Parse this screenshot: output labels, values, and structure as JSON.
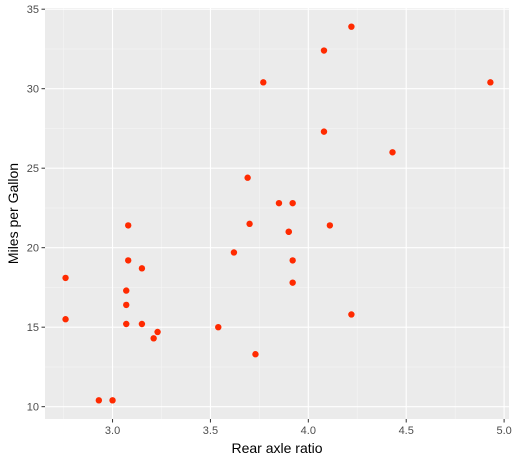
{
  "chart_data": {
    "type": "scatter",
    "xlabel": "Rear axle ratio",
    "ylabel": "Miles per Gallon",
    "xlim": [
      2.655,
      5.025
    ],
    "ylim": [
      9.225,
      35.075
    ],
    "x_ticks": [
      3.0,
      3.5,
      4.0,
      4.5,
      5.0
    ],
    "x_tick_labels": [
      "3.0",
      "3.5",
      "4.0",
      "4.5",
      "5.0"
    ],
    "y_ticks": [
      10,
      15,
      20,
      25,
      30,
      35
    ],
    "y_tick_labels": [
      "10",
      "15",
      "20",
      "25",
      "30",
      "35"
    ],
    "grid": true,
    "legend": "none",
    "points": [
      {
        "x": 3.9,
        "y": 21.0
      },
      {
        "x": 3.9,
        "y": 21.0
      },
      {
        "x": 3.85,
        "y": 22.8
      },
      {
        "x": 3.08,
        "y": 21.4
      },
      {
        "x": 3.15,
        "y": 18.7
      },
      {
        "x": 2.76,
        "y": 18.1
      },
      {
        "x": 3.21,
        "y": 14.3
      },
      {
        "x": 3.69,
        "y": 24.4
      },
      {
        "x": 3.92,
        "y": 22.8
      },
      {
        "x": 3.92,
        "y": 19.2
      },
      {
        "x": 3.92,
        "y": 17.8
      },
      {
        "x": 3.07,
        "y": 16.4
      },
      {
        "x": 3.07,
        "y": 17.3
      },
      {
        "x": 3.07,
        "y": 15.2
      },
      {
        "x": 2.93,
        "y": 10.4
      },
      {
        "x": 3.0,
        "y": 10.4
      },
      {
        "x": 3.23,
        "y": 14.7
      },
      {
        "x": 4.08,
        "y": 32.4
      },
      {
        "x": 4.93,
        "y": 30.4
      },
      {
        "x": 4.22,
        "y": 33.9
      },
      {
        "x": 3.7,
        "y": 21.5
      },
      {
        "x": 2.76,
        "y": 15.5
      },
      {
        "x": 3.15,
        "y": 15.2
      },
      {
        "x": 3.73,
        "y": 13.3
      },
      {
        "x": 3.08,
        "y": 19.2
      },
      {
        "x": 4.08,
        "y": 27.3
      },
      {
        "x": 4.43,
        "y": 26.0
      },
      {
        "x": 3.77,
        "y": 30.4
      },
      {
        "x": 4.22,
        "y": 15.8
      },
      {
        "x": 3.62,
        "y": 19.7
      },
      {
        "x": 3.54,
        "y": 15.0
      },
      {
        "x": 4.11,
        "y": 21.4
      }
    ]
  },
  "colors": {
    "panel_background": "#ebebeb",
    "grid_major": "#ffffff",
    "grid_minor": "#f5f5f5",
    "point": "#ff2a00",
    "tick_label": "#4d4d4d",
    "tick_mark": "#333333",
    "axis_title": "#000000"
  }
}
